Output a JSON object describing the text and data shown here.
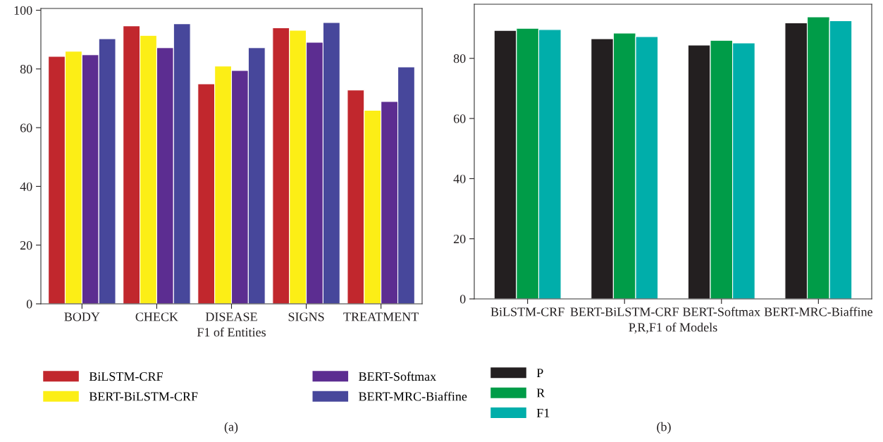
{
  "chart_data": [
    {
      "type": "bar",
      "categories": [
        "BODY",
        "CHECK",
        "DISEASE",
        "SIGNS",
        "TREATMENT"
      ],
      "xlabel": "F1 of Entities",
      "ylim": [
        0,
        100.6
      ],
      "yticks": [
        0,
        20,
        40,
        60,
        80,
        100
      ],
      "legend": "bottom",
      "annotations": [
        "(a)"
      ],
      "series": [
        {
          "name": "BiLSTM-CRF",
          "color": "#c1272d",
          "values": [
            84.3,
            94.7,
            74.9,
            94.0,
            72.8
          ]
        },
        {
          "name": "BERT-BiLSTM-CRF",
          "color": "#fcee16",
          "values": [
            86.0,
            91.4,
            81.0,
            93.2,
            65.9
          ]
        },
        {
          "name": "BERT-Softmax",
          "color": "#5c2d91",
          "values": [
            84.8,
            87.2,
            79.5,
            89.1,
            68.9
          ]
        },
        {
          "name": "BERT-MRC-Biaffine",
          "color": "#47479b",
          "values": [
            90.3,
            95.4,
            87.2,
            95.8,
            80.7
          ]
        }
      ]
    },
    {
      "type": "bar",
      "categories": [
        "BiLSTM-CRF",
        "BERT-BiLSTM-CRF",
        "BERT-Softmax",
        "BERT-MRC-Biaffine"
      ],
      "xlabel": "P,R,F1 of Models",
      "ylim": [
        0,
        98
      ],
      "yticks": [
        0,
        20,
        40,
        60,
        80
      ],
      "legend": "bottom",
      "annotations": [
        "(b)"
      ],
      "series": [
        {
          "name": "P",
          "color": "#231f20",
          "values": [
            89.3,
            86.5,
            84.4,
            91.8
          ]
        },
        {
          "name": "R",
          "color": "#009c48",
          "values": [
            90.0,
            88.4,
            86.0,
            93.8
          ]
        },
        {
          "name": "F1",
          "color": "#00aeaa",
          "values": [
            89.6,
            87.2,
            85.1,
            92.5
          ]
        }
      ]
    }
  ]
}
